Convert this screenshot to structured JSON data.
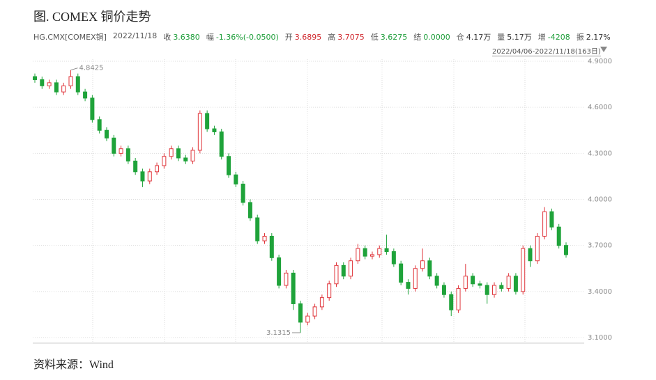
{
  "chart_data": {
    "type": "candlestick",
    "title": "图. COMEX 铜价走势",
    "info": {
      "symbol": "HG.CMX[COMEX铜]",
      "date": "2022/11/18",
      "fields": [
        {
          "label": "收",
          "value": "3.6380",
          "color": "#1e9e3a"
        },
        {
          "label": "幅",
          "value": "-1.36%(-0.0500)",
          "color": "#1e9e3a"
        },
        {
          "label": "开",
          "value": "3.6895",
          "color": "#d0282e"
        },
        {
          "label": "高",
          "value": "3.7075",
          "color": "#d0282e"
        },
        {
          "label": "低",
          "value": "3.6275",
          "color": "#1e9e3a"
        },
        {
          "label": "结",
          "value": "0.0000",
          "color": "#1e9e3a"
        },
        {
          "label": "仓",
          "value": "4.17万",
          "color": "#333333"
        },
        {
          "label": "量",
          "value": "5.17万",
          "color": "#333333"
        },
        {
          "label": "增",
          "value": "-4208",
          "color": "#1e9e3a"
        },
        {
          "label": "振",
          "value": "2.17%",
          "color": "#333333"
        }
      ]
    },
    "range": "2022/04/06-2022/11/18(163日)",
    "source": "资料来源：Wind",
    "up_color": "#e0353b",
    "down_color": "#1fa33a",
    "open": [
      4.8,
      4.78,
      4.74,
      4.76,
      4.7,
      4.74,
      4.8,
      4.7,
      4.66,
      4.52,
      4.45,
      4.4,
      4.3,
      4.33,
      4.25,
      4.18,
      4.12,
      4.18,
      4.22,
      4.28,
      4.33,
      4.27,
      4.25,
      4.32,
      4.56,
      4.46,
      4.44,
      4.28,
      4.16,
      4.1,
      3.98,
      3.88,
      3.73,
      3.76,
      3.62,
      3.44,
      3.52,
      3.32,
      3.2,
      3.24,
      3.3,
      3.36,
      3.45,
      3.57,
      3.5,
      3.6,
      3.68,
      3.63,
      3.64,
      3.68,
      3.66,
      3.58,
      3.46,
      3.42,
      3.55,
      3.6,
      3.5,
      3.44,
      3.38,
      3.28,
      3.42,
      3.5,
      3.45,
      3.44,
      3.38,
      3.44,
      3.42,
      3.5,
      3.4,
      3.68,
      3.6,
      3.76,
      3.92,
      3.82,
      3.7
    ],
    "high": [
      4.82,
      4.8,
      4.78,
      4.78,
      4.76,
      4.8425,
      4.82,
      4.72,
      4.68,
      4.54,
      4.47,
      4.42,
      4.35,
      4.35,
      4.27,
      4.2,
      4.2,
      4.24,
      4.3,
      4.35,
      4.35,
      4.29,
      4.34,
      4.58,
      4.58,
      4.48,
      4.46,
      4.3,
      4.18,
      4.12,
      4.0,
      3.9,
      3.78,
      3.78,
      3.64,
      3.54,
      3.54,
      3.34,
      3.26,
      3.32,
      3.38,
      3.47,
      3.59,
      3.59,
      3.62,
      3.71,
      3.7,
      3.66,
      3.7,
      3.77,
      3.68,
      3.6,
      3.48,
      3.57,
      3.68,
      3.62,
      3.52,
      3.46,
      3.4,
      3.44,
      3.58,
      3.52,
      3.47,
      3.46,
      3.46,
      3.46,
      3.52,
      3.52,
      3.7,
      3.7,
      3.78,
      3.95,
      3.94,
      3.84,
      3.72
    ],
    "low": [
      4.76,
      4.72,
      4.72,
      4.68,
      4.68,
      4.72,
      4.68,
      4.64,
      4.5,
      4.43,
      4.38,
      4.28,
      4.28,
      4.23,
      4.16,
      4.08,
      4.1,
      4.16,
      4.2,
      4.26,
      4.25,
      4.23,
      4.23,
      4.3,
      4.44,
      4.42,
      4.26,
      4.14,
      4.08,
      3.96,
      3.86,
      3.71,
      3.71,
      3.6,
      3.42,
      3.42,
      3.28,
      3.1315,
      3.18,
      3.22,
      3.28,
      3.34,
      3.43,
      3.48,
      3.48,
      3.58,
      3.61,
      3.61,
      3.62,
      3.64,
      3.56,
      3.44,
      3.38,
      3.4,
      3.53,
      3.48,
      3.42,
      3.36,
      3.24,
      3.26,
      3.4,
      3.43,
      3.42,
      3.32,
      3.36,
      3.4,
      3.4,
      3.38,
      3.38,
      3.56,
      3.58,
      3.74,
      3.8,
      3.68,
      3.62
    ],
    "close": [
      4.78,
      4.74,
      4.76,
      4.7,
      4.74,
      4.8,
      4.7,
      4.66,
      4.52,
      4.45,
      4.4,
      4.3,
      4.33,
      4.25,
      4.18,
      4.12,
      4.18,
      4.22,
      4.28,
      4.33,
      4.27,
      4.25,
      4.32,
      4.56,
      4.46,
      4.44,
      4.28,
      4.16,
      4.1,
      3.98,
      3.88,
      3.73,
      3.76,
      3.62,
      3.44,
      3.52,
      3.32,
      3.2,
      3.24,
      3.3,
      3.36,
      3.45,
      3.57,
      3.5,
      3.6,
      3.68,
      3.63,
      3.64,
      3.68,
      3.66,
      3.58,
      3.46,
      3.42,
      3.55,
      3.6,
      3.5,
      3.44,
      3.38,
      3.28,
      3.42,
      3.5,
      3.45,
      3.44,
      3.38,
      3.44,
      3.42,
      3.5,
      3.4,
      3.68,
      3.6,
      3.76,
      3.92,
      3.82,
      3.7,
      3.64
    ],
    "ylim": [
      3.1,
      4.9
    ],
    "yticks": [
      {
        "value": 3.1,
        "label": "3.1000"
      },
      {
        "value": 3.4,
        "label": "3.4000"
      },
      {
        "value": 3.7,
        "label": "3.7000"
      },
      {
        "value": 4.0,
        "label": "4.0000"
      },
      {
        "value": 4.3,
        "label": "4.3000"
      },
      {
        "value": 4.6,
        "label": "4.6000"
      },
      {
        "value": 4.9,
        "label": "4.9000"
      }
    ],
    "grid": true
  }
}
